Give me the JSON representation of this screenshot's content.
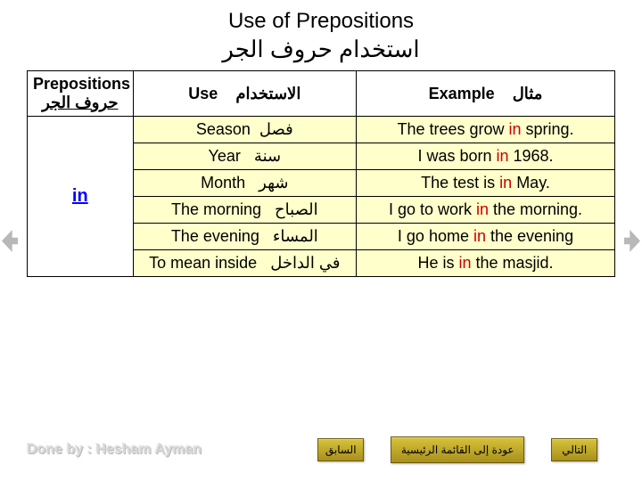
{
  "title": {
    "en": "Use of Prepositions",
    "ar": "استخدام حروف الجر"
  },
  "table": {
    "headers": {
      "prep_en": "Prepositions",
      "prep_ar": "حروف الجر",
      "use_en": "Use",
      "use_ar": "الاستخدام",
      "ex_en": "Example",
      "ex_ar": "مثال"
    },
    "prep_cell": "in",
    "rows": [
      {
        "use_en": "Season",
        "use_ar": "فصل",
        "ex_pre": "The trees grow ",
        "ex_hl": "in",
        "ex_post": " spring."
      },
      {
        "use_en": "Year",
        "use_ar": "سنة",
        "ex_pre": "I was born ",
        "ex_hl": "in",
        "ex_post": " 1968."
      },
      {
        "use_en": "Month",
        "use_ar": "شهر",
        "ex_pre": "The test is ",
        "ex_hl": "in",
        "ex_post": " May."
      },
      {
        "use_en": "The morning",
        "use_ar": "الصباح",
        "ex_pre": "I go to work ",
        "ex_hl": "in",
        "ex_post": " the morning."
      },
      {
        "use_en": "The evening",
        "use_ar": "المساء",
        "ex_pre": "I go home ",
        "ex_hl": "in",
        "ex_post": " the evening"
      },
      {
        "use_en": "To mean inside",
        "use_ar": "في الداخل",
        "ex_pre": "He is ",
        "ex_hl": "in",
        "ex_post": " the masjid."
      }
    ]
  },
  "footer": {
    "credit": "Done by : Hesham Ayman",
    "btn_prev": "السابق",
    "btn_main": "عودة إلى القائمة الرئيسية",
    "btn_next": "التالي"
  },
  "colors": {
    "cell_bg": "#ffffcc",
    "highlight": "#cc0000",
    "prep_link": "#0000ff",
    "btn_bg1": "#d7c23a",
    "btn_bg2": "#a8901c"
  }
}
